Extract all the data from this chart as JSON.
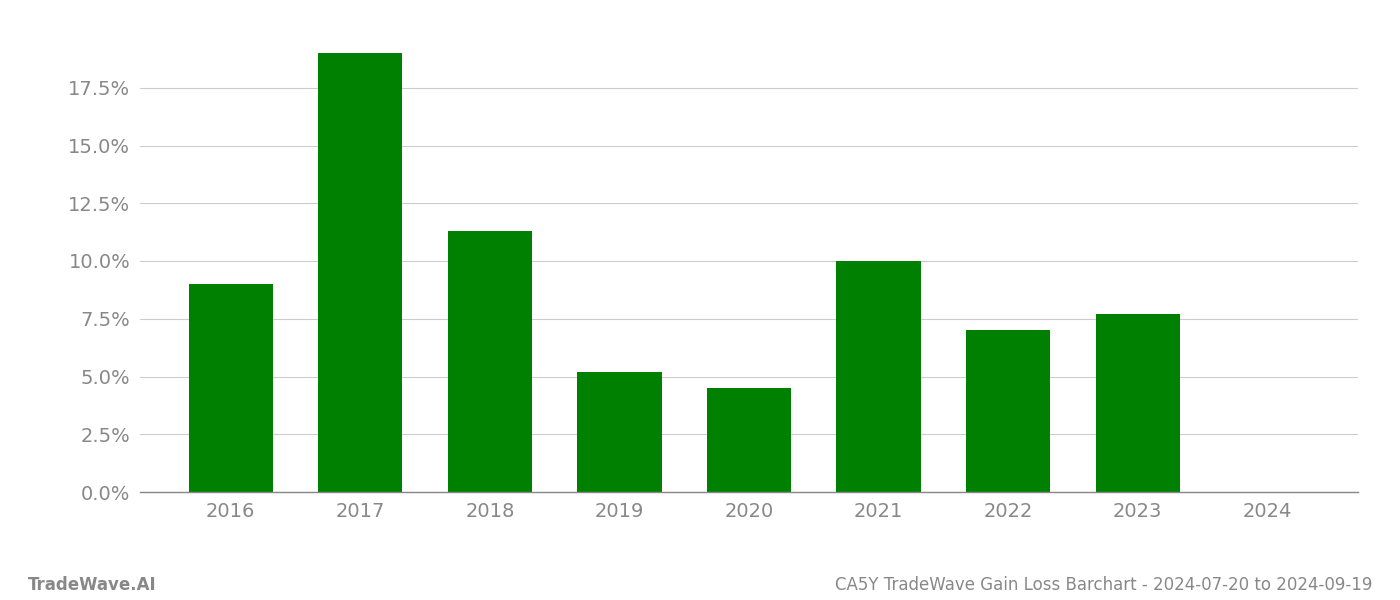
{
  "categories": [
    "2016",
    "2017",
    "2018",
    "2019",
    "2020",
    "2021",
    "2022",
    "2023",
    "2024"
  ],
  "values": [
    0.09,
    0.19,
    0.113,
    0.052,
    0.045,
    0.1,
    0.07,
    0.077,
    0.0
  ],
  "bar_color": "#008000",
  "background_color": "#ffffff",
  "grid_color": "#cccccc",
  "axis_color": "#888888",
  "tick_label_color": "#888888",
  "ylim": [
    0,
    0.2
  ],
  "yticks": [
    0.0,
    0.025,
    0.05,
    0.075,
    0.1,
    0.125,
    0.15,
    0.175
  ],
  "footer_left": "TradeWave.AI",
  "footer_right": "CA5Y TradeWave Gain Loss Barchart - 2024-07-20 to 2024-09-19",
  "footer_color": "#888888",
  "footer_fontsize": 12,
  "tick_fontsize": 14,
  "bar_width": 0.65
}
